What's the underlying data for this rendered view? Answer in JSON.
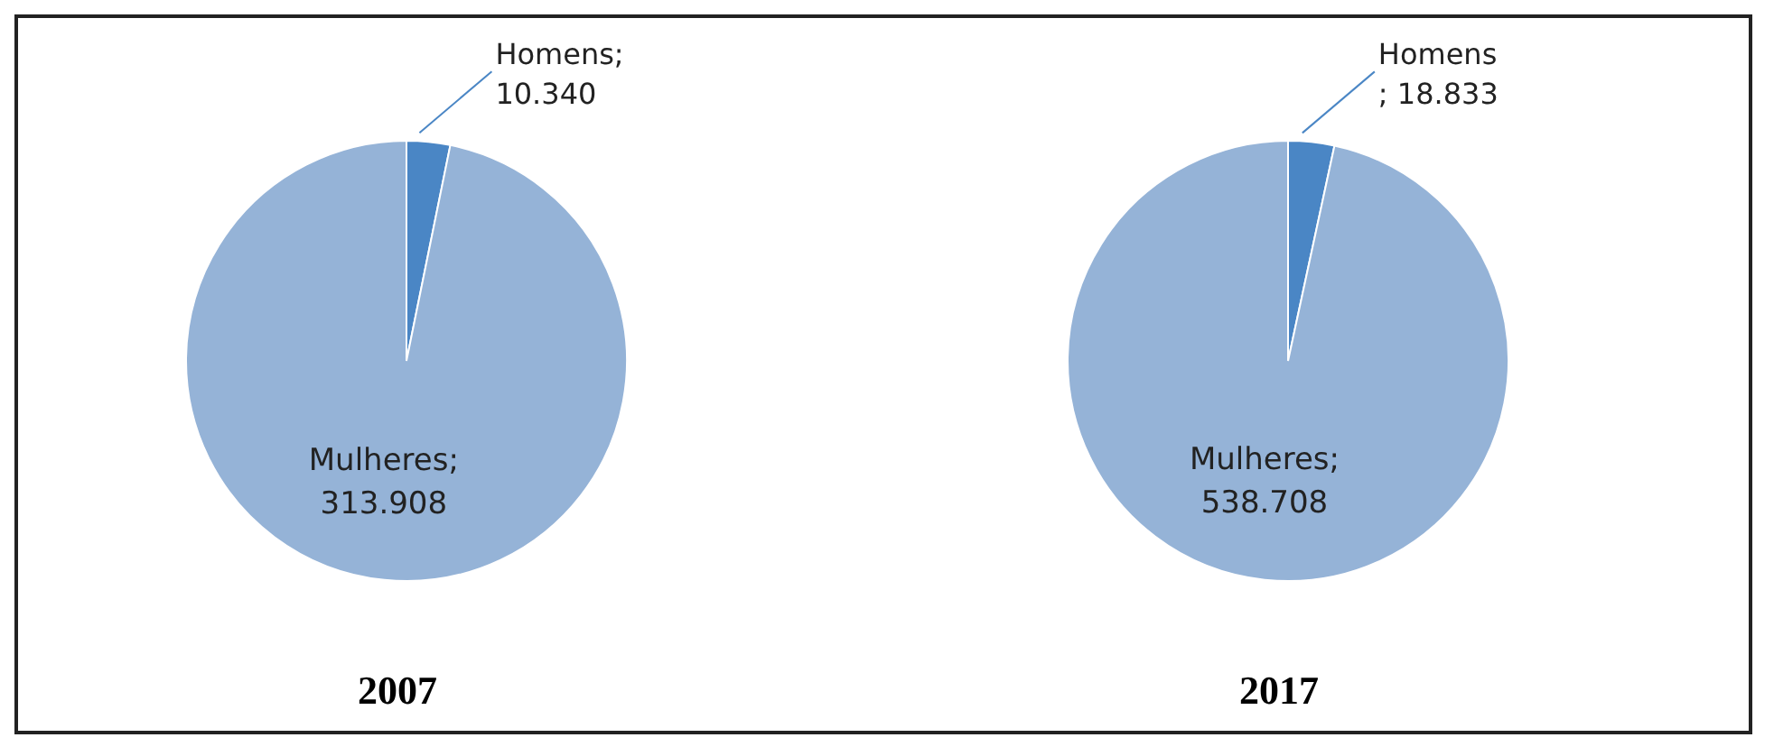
{
  "chart_data": [
    {
      "type": "pie",
      "title": "2007",
      "categories": [
        "Homens",
        "Mulheres"
      ],
      "values": [
        10340,
        313908
      ],
      "value_labels": [
        ";\n10.340",
        ";\n313.908"
      ],
      "colors": [
        "#4a86c5",
        "#95b3d7"
      ]
    },
    {
      "type": "pie",
      "title": "2017",
      "categories": [
        "Homens",
        "Mulheres"
      ],
      "values": [
        18833,
        538708
      ],
      "value_labels": [
        "\n; 18.833",
        ";\n538.708"
      ],
      "colors": [
        "#4a86c5",
        "#95b3d7"
      ]
    }
  ]
}
